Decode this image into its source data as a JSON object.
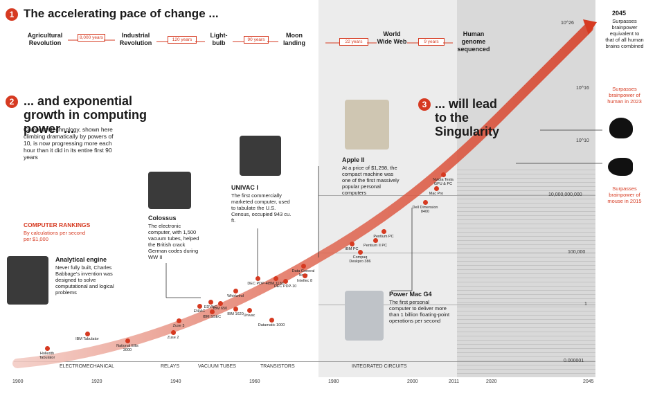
{
  "section1": {
    "number": "1",
    "title": "The accelerating pace of change ...",
    "events": [
      {
        "label": "Agricultural Revolution",
        "gap": "8,000 years"
      },
      {
        "label": "Industrial Revolution",
        "gap": "120 years"
      },
      {
        "label": "Light-bulb",
        "gap": "90 years"
      },
      {
        "label": "Moon landing",
        "gap": "22 years"
      },
      {
        "label": "World Wide Web",
        "gap": "9 years"
      },
      {
        "label": "Human genome sequenced",
        "gap": ""
      }
    ]
  },
  "section2": {
    "number": "2",
    "title": "... and exponential growth in computing power ...",
    "body": "Computer technology, shown here climbing dramatically by powers of 10, is now progressing more each hour than it did in its entire first 90 years"
  },
  "section3": {
    "number": "3",
    "title": "... will lead to the Singularity"
  },
  "rankings": {
    "title": "COMPUTER RANKINGS",
    "subtitle": "By calculations per second per $1,000"
  },
  "callouts": {
    "analytical": {
      "title": "Analytical engine",
      "body": "Never fully built, Charles Babbage's invention was designed to solve computational and logical problems"
    },
    "colossus": {
      "title": "Colossus",
      "body": "The electronic computer, with 1,500 vacuum tubes, helped the British crack German codes during WW II"
    },
    "univac": {
      "title": "UNIVAC I",
      "body": "The first commercially marketed computer, used to tabulate the U.S. Census, occupied 943 cu. ft."
    },
    "apple": {
      "title": "Apple II",
      "body": "At a price of $1,298, the compact machine was one of the first massively popular personal computers"
    },
    "powermac": {
      "title": "Power Mac G4",
      "body": "The first personal computer to deliver more than 1 billion floating-point operations per second"
    }
  },
  "right_notes": {
    "y2045_year": "2045",
    "y2045_text": "Surpasses brainpower equivalent to that of all human brains combined",
    "human_text": "Surpasses brainpower of human in 2023",
    "mouse_text": "Surpasses brainpower of mouse in 2015"
  },
  "points": [
    "Hollerith Tabulator",
    "IBM Tabulator",
    "National Ellis 3000",
    "Zuse 3",
    "Zuse 2",
    "ENIAC",
    "EDVAC",
    "IBM SSEC",
    "IBM 650",
    "Whirlwind",
    "DEC PDP-4",
    "IBM 1130",
    "Data General Nova",
    "Intellec 8",
    "DEC PDP-10",
    "IBM 1620",
    "Univac",
    "Datamatic 1000",
    "IBM PC",
    "Compaq Deskpro 386",
    "Pentium II PC",
    "Pentium PC",
    "Dell Dimension 8400",
    "Mac Pro",
    "Nvidia Tesla GPU & PC"
  ],
  "y_ticks": [
    "10^26",
    "10^16",
    "10^10",
    "10,000,000,000",
    "100,000",
    "1",
    "0.000001"
  ],
  "eras": [
    "ELECTROMECHANICAL",
    "RELAYS",
    "VACUUM TUBES",
    "TRANSISTORS",
    "INTEGRATED CIRCUITS"
  ],
  "x_ticks": [
    "1900",
    "1920",
    "1940",
    "1960",
    "1980",
    "2000",
    "2011",
    "2020",
    "2045"
  ],
  "colors": {
    "accent": "#d63a21",
    "shade": "#d9d9d9"
  }
}
